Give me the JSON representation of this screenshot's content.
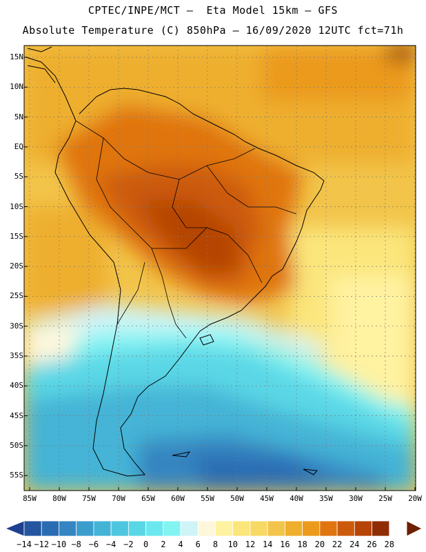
{
  "title": {
    "line1": "CPTEC/INPE/MCT —  Eta Model 15km — GFS",
    "line2": "Absolute Temperature (C) 850hPa — 16/09/2020 12UTC fct=71h"
  },
  "lat_labels": [
    "15N",
    "10N",
    "5N",
    "EQ",
    "5S",
    "10S",
    "15S",
    "20S",
    "25S",
    "30S",
    "35S",
    "40S",
    "45S",
    "50S",
    "55S"
  ],
  "lon_labels": [
    "85W",
    "80W",
    "75W",
    "70W",
    "65W",
    "60W",
    "55W",
    "50W",
    "45W",
    "40W",
    "35W",
    "30W",
    "25W",
    "20W"
  ],
  "colorbar": {
    "labels": [
      "-14",
      "-12",
      "-10",
      "-8",
      "-6",
      "-4",
      "-2",
      "0",
      "2",
      "4",
      "6",
      "8",
      "10",
      "12",
      "14",
      "16",
      "18",
      "20",
      "22",
      "24",
      "26",
      "28"
    ],
    "colors": [
      "#1f3f8f",
      "#2456a0",
      "#2a6cb3",
      "#3485c1",
      "#3b9dcc",
      "#44b4d6",
      "#4fc6df",
      "#5ad7e6",
      "#6ae8ee",
      "#84f4f3",
      "#cff4f7",
      "#fff7dc",
      "#fff2a0",
      "#fbe67c",
      "#f7d964",
      "#f2c44a",
      "#eeaf2d",
      "#eb9a1c",
      "#e07510",
      "#cc5a0c",
      "#b54406",
      "#8f2c04",
      "#6f1f03"
    ]
  },
  "map": {
    "domain": "South America",
    "field": "Absolute Temperature 850hPa"
  }
}
